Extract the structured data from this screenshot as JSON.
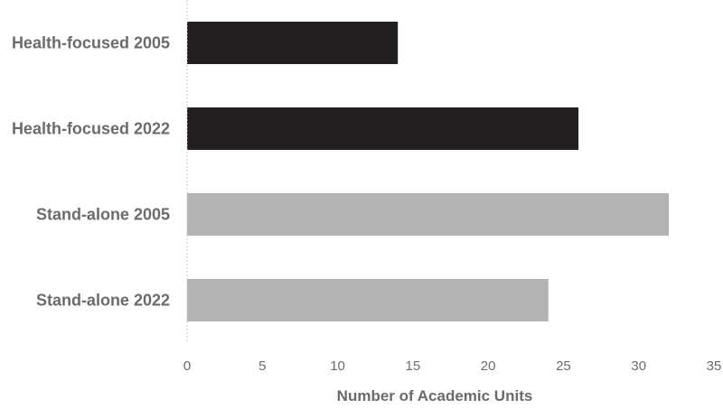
{
  "chart_data": {
    "type": "bar",
    "orientation": "horizontal",
    "categories": [
      "Health-focused 2005",
      "Health-focused 2022",
      "Stand-alone 2005",
      "Stand-alone 2022"
    ],
    "values": [
      14,
      26,
      32,
      24
    ],
    "bar_colors": [
      "#231f20",
      "#231f20",
      "#b3b3b3",
      "#b3b3b3"
    ],
    "xlabel": "Number of Academic Units",
    "xlim": [
      0,
      35
    ],
    "xticks": [
      0,
      5,
      10,
      15,
      20,
      25,
      30,
      35
    ],
    "grid": false,
    "legend": "none"
  }
}
